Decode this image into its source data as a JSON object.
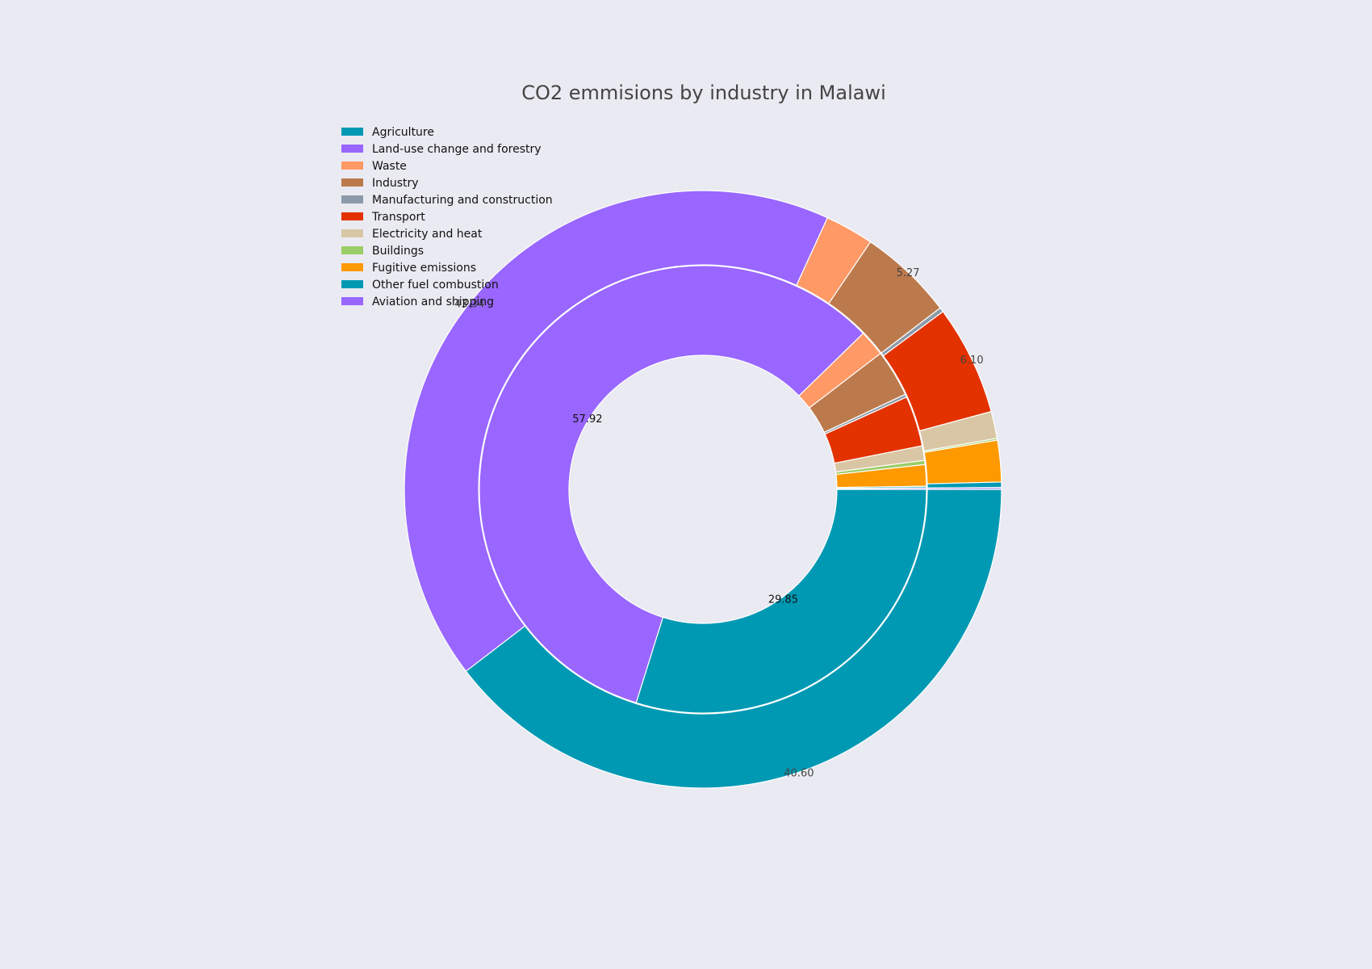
{
  "chart_data": {
    "type": "pie",
    "title": "CO2 emmisions by industry in Malawi",
    "legend_placement": "top-left",
    "legend": [
      {
        "name": "Agriculture",
        "color": "#0099b4"
      },
      {
        "name": "Land-use change and forestry",
        "color": "#9966ff"
      },
      {
        "name": "Waste",
        "color": "#ff9966"
      },
      {
        "name": "Industry",
        "color": "#bc7a4c"
      },
      {
        "name": "Manufacturing and construction",
        "color": "#8c9aa8"
      },
      {
        "name": "Transport",
        "color": "#e33200"
      },
      {
        "name": "Electricity and heat",
        "color": "#d9c6a5"
      },
      {
        "name": "Buildings",
        "color": "#9ccc66"
      },
      {
        "name": "Fugitive emissions",
        "color": "#ff9900"
      },
      {
        "name": "Other fuel combustion",
        "color": "#0099b4"
      },
      {
        "name": "Aviation and shipping",
        "color": "#9966ff"
      }
    ],
    "outer_ring": {
      "labels": [
        "Agriculture",
        "Land-use change and forestry",
        "Waste",
        "Industry",
        "Manufacturing and construction",
        "Transport",
        "Electricity and heat",
        "Buildings",
        "Fugitive emissions",
        "Other fuel combustion",
        "Aviation and shipping"
      ],
      "values": [
        40.6,
        43.34,
        2.7,
        5.27,
        0.25,
        6.1,
        1.5,
        0.1,
        2.3,
        0.3,
        0.1
      ],
      "data_labels": [
        "40.60",
        "43.34",
        "",
        "5.27",
        "",
        "6.10",
        "",
        "",
        "",
        "",
        ""
      ]
    },
    "inner_ring": {
      "labels": [
        "Agriculture",
        "Land-use change and forestry",
        "Waste",
        "Industry",
        "Manufacturing and construction",
        "Transport",
        "Electricity and heat",
        "Buildings",
        "Fugitive emissions",
        "Other fuel combustion",
        "Aviation and shipping"
      ],
      "values": [
        29.85,
        57.92,
        1.89,
        3.41,
        0.22,
        3.65,
        1.05,
        0.3,
        1.55,
        0.12,
        0.1
      ],
      "data_labels": [
        "29.85",
        "57.92",
        "",
        "",
        "",
        "",
        "",
        "",
        "",
        "",
        ""
      ]
    }
  }
}
